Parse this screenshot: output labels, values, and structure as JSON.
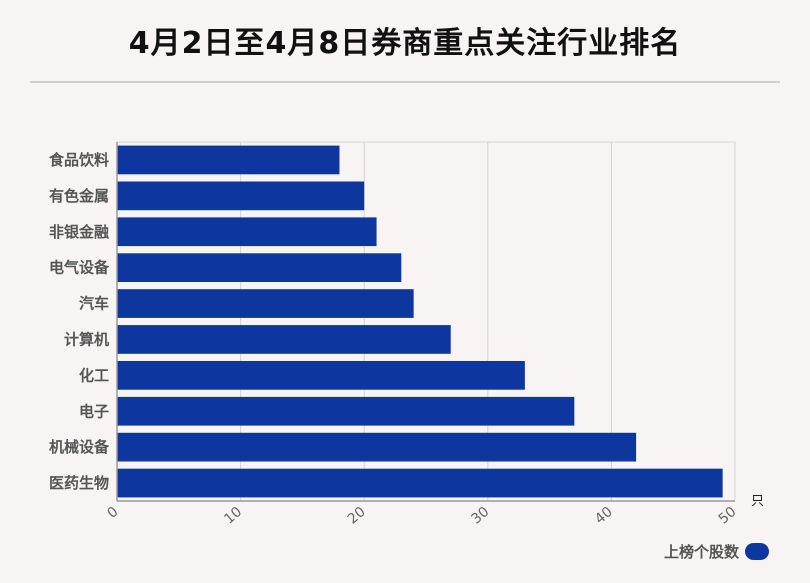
{
  "title": "4月2日至4月8日券商重点关注行业排名",
  "colors": {
    "bar": "#0d379e",
    "grid": "#d3d3d3",
    "axis": "#999999"
  },
  "chart_data": {
    "type": "bar",
    "orientation": "horizontal",
    "categories": [
      "食品饮料",
      "有色金属",
      "非银金融",
      "电气设备",
      "汽车",
      "计算机",
      "化工",
      "电子",
      "机械设备",
      "医药生物"
    ],
    "series": [
      {
        "name": "上榜个股数",
        "values": [
          18,
          20,
          21,
          23,
          24,
          27,
          33,
          37,
          42,
          49
        ]
      }
    ],
    "xlim": [
      0,
      50
    ],
    "xticks": [
      0,
      10,
      20,
      30,
      40,
      50
    ],
    "x_unit": "只",
    "grid": true,
    "legend_position": "bottom-right"
  }
}
